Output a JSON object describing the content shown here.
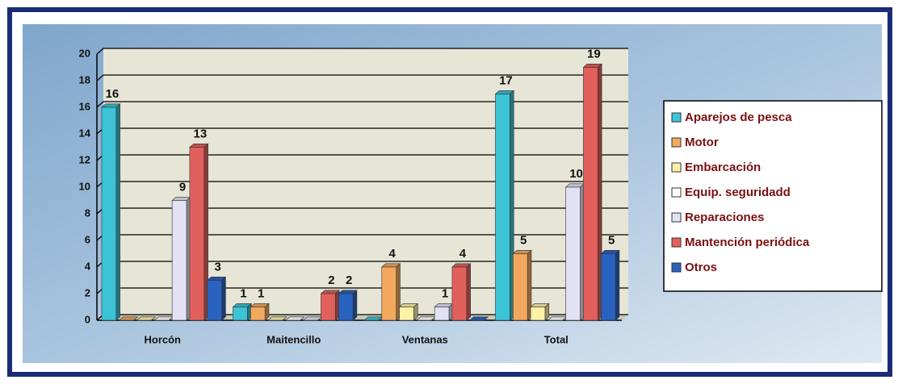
{
  "chart_data": {
    "type": "bar3d",
    "categories": [
      "Horcón",
      "Maitencillo",
      "Ventanas",
      "Total"
    ],
    "series": [
      {
        "name": "Aparejos de pesca",
        "color": "#3cc3d6",
        "values": [
          16,
          1,
          0,
          17
        ],
        "value_labels": [
          "16",
          "1",
          null,
          "17"
        ]
      },
      {
        "name": "Motor",
        "color": "#f2a95e",
        "values": [
          0,
          1,
          4,
          5
        ],
        "value_labels": [
          null,
          "1",
          "4",
          "5"
        ]
      },
      {
        "name": "Embarcación",
        "color": "#fff2a6",
        "values": [
          0,
          0,
          1,
          1
        ],
        "value_labels": [
          null,
          null,
          null,
          null
        ]
      },
      {
        "name": "Equip. seguridadd",
        "color": "#ffffff",
        "values": [
          0,
          0,
          0,
          0
        ],
        "value_labels": [
          null,
          null,
          null,
          null
        ]
      },
      {
        "name": "Reparaciones",
        "color": "#e2e2f4",
        "values": [
          9,
          0,
          1,
          10
        ],
        "value_labels": [
          "9",
          null,
          "1",
          "10"
        ]
      },
      {
        "name": "Mantención periódica",
        "color": "#e2605c",
        "values": [
          13,
          2,
          4,
          19
        ],
        "value_labels": [
          "13",
          "2",
          "4",
          "19"
        ]
      },
      {
        "name": "Otros",
        "color": "#2a62c0",
        "values": [
          3,
          2,
          0,
          5
        ],
        "value_labels": [
          "3",
          "2",
          null,
          "5"
        ]
      }
    ],
    "ylim": [
      0,
      20
    ],
    "yticks": [
      0,
      2,
      4,
      6,
      8,
      10,
      12,
      14,
      16,
      18,
      20
    ],
    "grid": true
  }
}
